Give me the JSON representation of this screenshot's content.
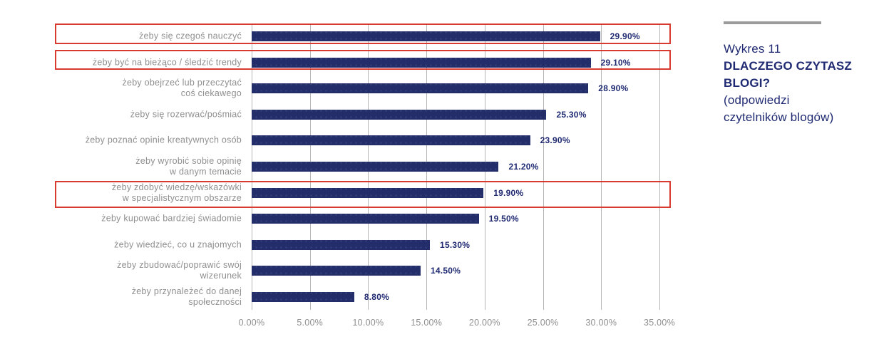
{
  "chart_data": {
    "type": "bar",
    "orientation": "horizontal",
    "categories": [
      "żeby się czegoś nauczyć",
      "żeby być na bieżąco / śledzić trendy",
      "żeby obejrzeć lub przeczytać\ncoś ciekawego",
      "żeby się rozerwać/pośmiać",
      "żeby poznać opinie kreatywnych osób",
      "żeby wyrobić sobie opinię\nw danym temacie",
      "żeby zdobyć wiedzę/wskazówki\nw specjalistycznym obszarze",
      "żeby kupować bardziej świadomie",
      "żeby wiedzieć, co u znajomych",
      "żeby zbudować/poprawić swój\nwizerunek",
      "żeby przynależeć do danej\nspołeczności"
    ],
    "values": [
      29.9,
      29.1,
      28.9,
      25.3,
      23.9,
      21.2,
      19.9,
      19.5,
      15.3,
      14.5,
      8.8
    ],
    "value_labels": [
      "29.90%",
      "29.10%",
      "28.90%",
      "25.30%",
      "23.90%",
      "21.20%",
      "19.90%",
      "19.50%",
      "15.30%",
      "14.50%",
      "8.80%"
    ],
    "x_tick_labels": [
      "0.00%",
      "5.00%",
      "10.00%",
      "15.00%",
      "20.00%",
      "25.00%",
      "30.00%",
      "35.00%"
    ],
    "xlim": [
      0,
      35
    ],
    "x_tick_step": 5,
    "grid": "vertical",
    "legend": "none",
    "highlighted_rows": [
      0,
      1,
      6
    ]
  },
  "title_panel": {
    "kicker": "Wykres 11",
    "heading": "DLACZEGO CZYTASZ\nBLOGI?",
    "note": "(odpowiedzi\nczytelników blogów)"
  },
  "colors": {
    "bar": "#232d69",
    "bar_dot": "#35417f",
    "value_text": "#1f2a72",
    "category_text": "#8f8f8f",
    "axis_text": "#8f8f8f",
    "gridline": "#b5b5b5",
    "highlight_border": "#d93a30",
    "title_text": "#1f2a72",
    "rule": "#9b9b9b",
    "background": "#ffffff"
  }
}
